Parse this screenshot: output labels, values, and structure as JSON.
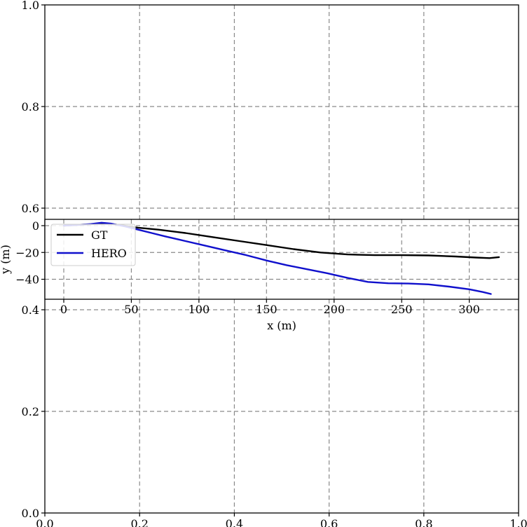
{
  "chart_data": [
    {
      "type": "line",
      "role": "background-axes",
      "title": "",
      "xlabel": "",
      "ylabel": "",
      "xlim": [
        0.0,
        1.0
      ],
      "ylim": [
        0.0,
        1.0
      ],
      "grid": true,
      "grid_style": "dashed",
      "xticks": [
        0.0,
        0.2,
        0.4,
        0.6,
        0.8,
        1.0
      ],
      "xtick_labels": [
        "0.0",
        "0.2",
        "0.4",
        "0.6",
        "0.8",
        "1.0"
      ],
      "yticks_visible": [
        0.0,
        0.2,
        0.4,
        0.6,
        0.8,
        1.0
      ],
      "ytick_labels": [
        "0.0",
        "0.2",
        "0.4",
        "0.6",
        "0.8",
        "1.0"
      ],
      "series": []
    },
    {
      "type": "line",
      "role": "trajectory-inset",
      "title": "",
      "xlabel": "x (m)",
      "ylabel": "y (m)",
      "xlim": [
        -5,
        330
      ],
      "ylim": [
        -53,
        6
      ],
      "grid": true,
      "grid_style": "dashed",
      "xticks": [
        0,
        50,
        100,
        150,
        200,
        250,
        300
      ],
      "xtick_labels": [
        "0",
        "50",
        "100",
        "150",
        "200",
        "250",
        "300"
      ],
      "yticks": [
        0,
        -20,
        -40
      ],
      "ytick_labels": [
        "0",
        "−20",
        "−40"
      ],
      "legend_position": "top-left",
      "series": [
        {
          "name": "GT",
          "color": "#000000",
          "x": [
            0,
            10,
            20,
            28,
            35,
            45,
            55,
            70,
            90,
            110,
            130,
            150,
            170,
            190,
            210,
            230,
            250,
            270,
            290,
            305,
            315,
            322
          ],
          "y": [
            0,
            0.5,
            1,
            1.5,
            1.2,
            0,
            -1.5,
            -3,
            -5.5,
            -8.5,
            -11.5,
            -14.5,
            -17.5,
            -20,
            -21.5,
            -22,
            -22,
            -22.2,
            -23,
            -23.8,
            -24.2,
            -23.5
          ]
        },
        {
          "name": "HERO",
          "color": "#1010cc",
          "x": [
            0,
            10,
            20,
            28,
            35,
            45,
            55,
            65,
            75,
            90,
            105,
            120,
            135,
            150,
            165,
            180,
            195,
            210,
            225,
            240,
            255,
            270,
            285,
            300,
            310,
            316
          ],
          "y": [
            0,
            0.6,
            1.2,
            2.2,
            1.5,
            -0.5,
            -3,
            -5.5,
            -8,
            -11.5,
            -15,
            -18.5,
            -22,
            -26,
            -29.5,
            -32.5,
            -35.5,
            -39,
            -42,
            -43,
            -43.2,
            -43.8,
            -45.5,
            -47.5,
            -49.5,
            -51
          ]
        }
      ]
    }
  ]
}
